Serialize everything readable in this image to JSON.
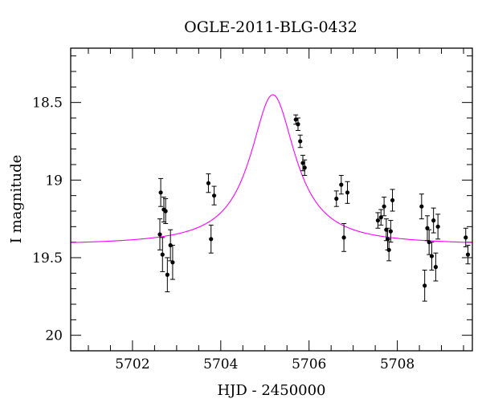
{
  "chart_data": {
    "type": "scatter",
    "title": "OGLE-2011-BLG-0432",
    "xlabel": "HJD - 2450000",
    "ylabel": "I magnitude",
    "xlim": [
      5700.6,
      5709.7
    ],
    "ylim": [
      20.1,
      18.15
    ],
    "y_inverted": true,
    "x_ticks": [
      5702,
      5704,
      5706,
      5708
    ],
    "x_tick_labels": [
      "5702",
      "5704",
      "5706",
      "5708"
    ],
    "y_ticks": [
      18.5,
      19,
      19.5,
      20
    ],
    "y_tick_labels": [
      "18.5",
      "19",
      "19.5",
      "20"
    ],
    "minor_x_step": 0.5,
    "minor_y_step": 0.1,
    "grid": false,
    "series": [
      {
        "kind": "points_with_errorbars",
        "color": "#000000",
        "points": [
          {
            "x": 5702.62,
            "y": 19.35,
            "err": 0.1
          },
          {
            "x": 5702.64,
            "y": 19.08,
            "err": 0.09
          },
          {
            "x": 5702.68,
            "y": 19.48,
            "err": 0.11
          },
          {
            "x": 5702.71,
            "y": 19.19,
            "err": 0.08
          },
          {
            "x": 5702.75,
            "y": 19.2,
            "err": 0.08
          },
          {
            "x": 5702.79,
            "y": 19.61,
            "err": 0.11
          },
          {
            "x": 5702.86,
            "y": 19.42,
            "err": 0.1
          },
          {
            "x": 5702.91,
            "y": 19.53,
            "err": 0.11
          },
          {
            "x": 5703.72,
            "y": 19.02,
            "err": 0.06
          },
          {
            "x": 5703.78,
            "y": 19.38,
            "err": 0.09
          },
          {
            "x": 5703.85,
            "y": 19.1,
            "err": 0.06
          },
          {
            "x": 5705.7,
            "y": 18.61,
            "err": 0.03
          },
          {
            "x": 5705.75,
            "y": 18.64,
            "err": 0.04
          },
          {
            "x": 5705.8,
            "y": 18.75,
            "err": 0.04
          },
          {
            "x": 5705.86,
            "y": 18.89,
            "err": 0.05
          },
          {
            "x": 5705.9,
            "y": 18.92,
            "err": 0.05
          },
          {
            "x": 5706.62,
            "y": 19.12,
            "err": 0.05
          },
          {
            "x": 5706.73,
            "y": 19.03,
            "err": 0.06
          },
          {
            "x": 5706.79,
            "y": 19.37,
            "err": 0.09
          },
          {
            "x": 5706.87,
            "y": 19.08,
            "err": 0.07
          },
          {
            "x": 5707.56,
            "y": 19.26,
            "err": 0.05
          },
          {
            "x": 5707.63,
            "y": 19.24,
            "err": 0.05
          },
          {
            "x": 5707.7,
            "y": 19.17,
            "err": 0.06
          },
          {
            "x": 5707.75,
            "y": 19.32,
            "err": 0.07
          },
          {
            "x": 5707.78,
            "y": 19.38,
            "err": 0.07
          },
          {
            "x": 5707.81,
            "y": 19.45,
            "err": 0.07
          },
          {
            "x": 5707.85,
            "y": 19.33,
            "err": 0.07
          },
          {
            "x": 5707.89,
            "y": 19.13,
            "err": 0.07
          },
          {
            "x": 5708.55,
            "y": 19.17,
            "err": 0.08
          },
          {
            "x": 5708.62,
            "y": 19.68,
            "err": 0.1
          },
          {
            "x": 5708.68,
            "y": 19.31,
            "err": 0.08
          },
          {
            "x": 5708.72,
            "y": 19.4,
            "err": 0.08
          },
          {
            "x": 5708.78,
            "y": 19.49,
            "err": 0.09
          },
          {
            "x": 5708.82,
            "y": 19.26,
            "err": 0.08
          },
          {
            "x": 5708.87,
            "y": 19.56,
            "err": 0.09
          },
          {
            "x": 5708.92,
            "y": 19.3,
            "err": 0.08
          },
          {
            "x": 5709.55,
            "y": 19.37,
            "err": 0.06
          },
          {
            "x": 5709.6,
            "y": 19.48,
            "err": 0.06
          }
        ]
      },
      {
        "kind": "model_curve",
        "color": "#ff00ff",
        "peak_x": 5705.18,
        "peak_y": 18.45,
        "baseline_y": 19.42,
        "timescale": 0.62
      }
    ]
  }
}
